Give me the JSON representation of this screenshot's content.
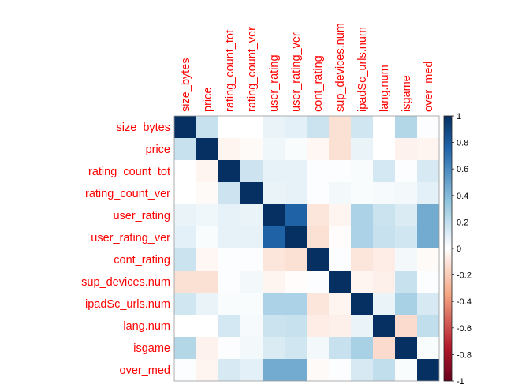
{
  "chart_data": {
    "type": "heatmap",
    "title": "",
    "variables": [
      "size_bytes",
      "price",
      "rating_count_tot",
      "rating_count_ver",
      "user_rating",
      "user_rating_ver",
      "cont_rating",
      "sup_devices.num",
      "ipadSc_urls.num",
      "lang.num",
      "isgame",
      "over_med"
    ],
    "matrix": [
      [
        1.0,
        0.18,
        0.0,
        0.0,
        0.07,
        0.09,
        0.17,
        -0.12,
        0.15,
        0.0,
        0.24,
        0.01
      ],
      [
        0.18,
        1.0,
        -0.04,
        -0.02,
        0.05,
        0.02,
        -0.03,
        -0.12,
        0.07,
        0.0,
        -0.05,
        -0.04
      ],
      [
        0.0,
        -0.04,
        1.0,
        0.16,
        0.08,
        0.08,
        0.01,
        0.01,
        0.02,
        0.14,
        0.01,
        0.13
      ],
      [
        0.0,
        -0.02,
        0.16,
        1.0,
        0.07,
        0.08,
        0.01,
        0.04,
        0.02,
        0.03,
        0.04,
        0.09
      ],
      [
        0.07,
        0.05,
        0.08,
        0.07,
        1.0,
        0.77,
        -0.1,
        -0.04,
        0.27,
        0.17,
        0.12,
        0.46
      ],
      [
        0.09,
        0.02,
        0.08,
        0.08,
        0.77,
        1.0,
        -0.12,
        -0.01,
        0.27,
        0.18,
        0.15,
        0.46
      ],
      [
        0.17,
        -0.03,
        0.01,
        0.01,
        -0.1,
        -0.12,
        1.0,
        0.01,
        -0.1,
        -0.07,
        0.04,
        -0.02
      ],
      [
        -0.12,
        -0.12,
        0.01,
        0.04,
        -0.04,
        -0.01,
        0.01,
        1.0,
        -0.04,
        -0.06,
        0.18,
        0.01
      ],
      [
        0.15,
        0.07,
        0.02,
        0.02,
        0.27,
        0.27,
        -0.1,
        -0.04,
        1.0,
        0.07,
        0.28,
        0.13
      ],
      [
        0.0,
        0.0,
        0.14,
        0.03,
        0.17,
        0.18,
        -0.07,
        -0.06,
        0.07,
        1.0,
        -0.14,
        0.2
      ],
      [
        0.24,
        -0.05,
        0.01,
        0.04,
        0.12,
        0.15,
        0.04,
        0.18,
        0.28,
        -0.14,
        1.0,
        0.02
      ],
      [
        0.01,
        -0.04,
        0.13,
        0.09,
        0.46,
        0.46,
        -0.02,
        0.01,
        0.13,
        0.2,
        0.02,
        1.0
      ]
    ],
    "colorbar": {
      "range": [
        -1,
        1
      ],
      "ticks": [
        "1",
        "0.8",
        "0.6",
        "0.4",
        "0.2",
        "0",
        "-0.2",
        "-0.4",
        "-0.6",
        "-0.8",
        "-1"
      ],
      "tick_values": [
        1,
        0.8,
        0.6,
        0.4,
        0.2,
        0,
        -0.2,
        -0.4,
        -0.6,
        -0.8,
        -1
      ]
    },
    "label_color": "#ff0000",
    "colors": {
      "high": "#053061",
      "mid_high": "#2166ac",
      "low_pos": "#92c5de",
      "zero": "#ffffff",
      "low_neg": "#f4a582",
      "mid_low": "#b2182b",
      "low": "#67001f"
    }
  }
}
